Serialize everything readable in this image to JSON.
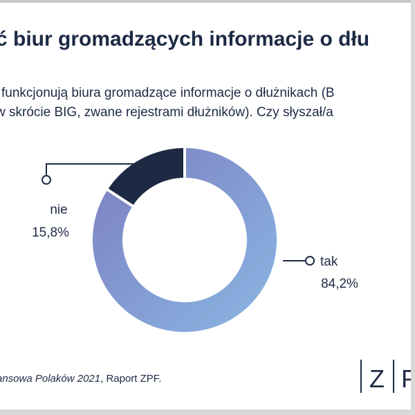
{
  "title": "ć biur gromadzących informacje o dłu",
  "question": {
    "line1": "funkcjonują biura gromadzące informacje o dłużnikach (B",
    "line2": "w skrócie BIG, zwane rejestrami dłużników). Czy słyszał/a"
  },
  "chart_data": {
    "type": "pie",
    "variant": "donut",
    "categories": [
      "tak",
      "nie"
    ],
    "values": [
      84.2,
      15.8
    ],
    "value_labels": [
      "84,2%",
      "15,8%"
    ],
    "colors": {
      "tak": [
        "#7c7ec0",
        "#8ab7e3"
      ],
      "nie": "#1d2a44"
    },
    "start_at": "top",
    "direction": "clockwise",
    "legend": "none",
    "title": ""
  },
  "source": {
    "italic": "ansowa Polaków 2021",
    "rest": ", Raport ZPF."
  },
  "logo": {
    "letters": "ZP",
    "color": "#1d2a44"
  }
}
